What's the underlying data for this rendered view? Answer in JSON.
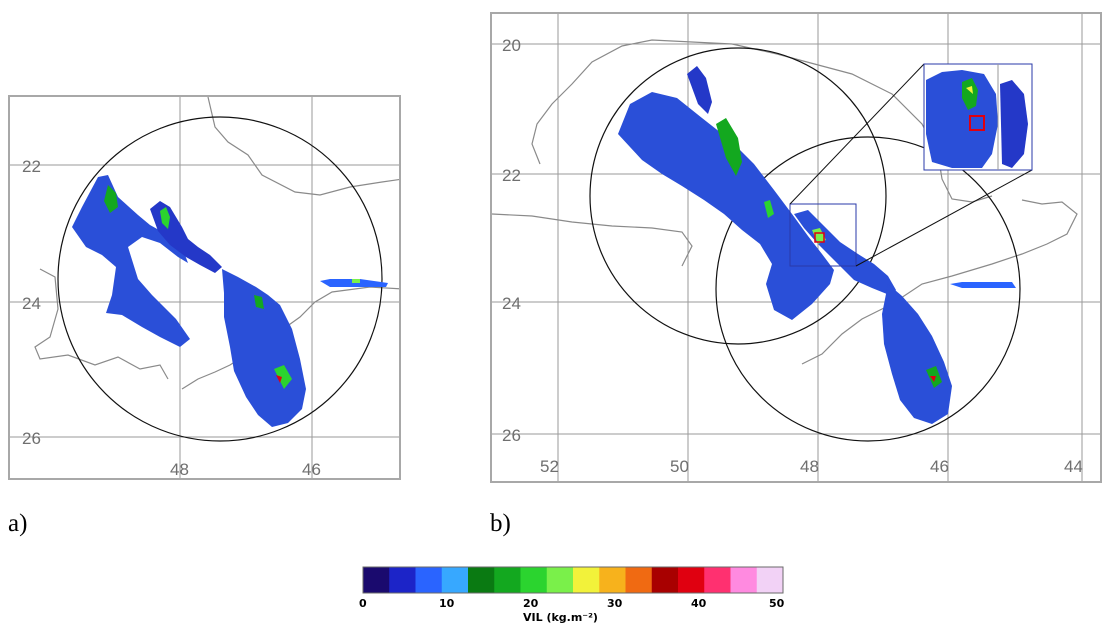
{
  "panels": [
    {
      "id": "a",
      "caption": "a)",
      "lat_ticks": [
        "22",
        "24",
        "26"
      ],
      "lon_ticks": [
        "48",
        "46"
      ]
    },
    {
      "id": "b",
      "caption": "b)",
      "lat_ticks": [
        "20",
        "22",
        "24",
        "26"
      ],
      "lon_ticks": [
        "52",
        "50",
        "48",
        "46",
        "44"
      ]
    }
  ],
  "colorbar": {
    "tick_labels": [
      "0",
      "10",
      "20",
      "30",
      "40",
      "50"
    ],
    "label": "VIL (kg.m⁻²)",
    "colors": [
      "#1a0a6e",
      "#1c24c8",
      "#2a64ff",
      "#37a8ff",
      "#0a7a12",
      "#13a81f",
      "#2bd42f",
      "#7af04a",
      "#f2f23a",
      "#f7b21c",
      "#f06a12",
      "#a80000",
      "#e00010",
      "#ff3070",
      "#ff8ae0",
      "#f2d2f6"
    ]
  }
}
